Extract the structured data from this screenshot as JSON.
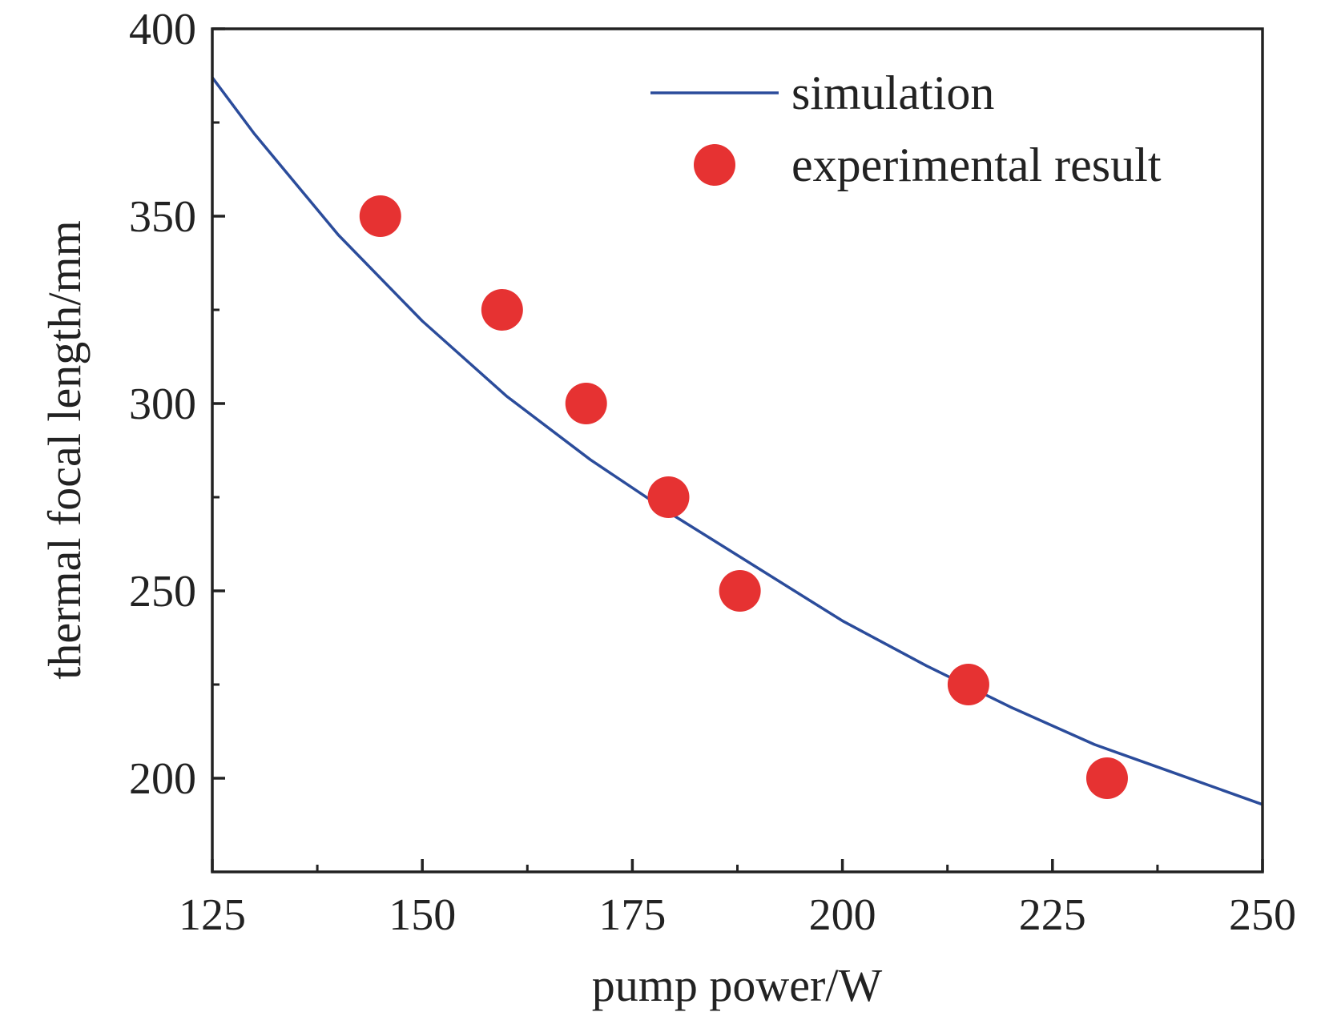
{
  "chart_data": {
    "type": "line",
    "title": "",
    "xlabel": "pump power/W",
    "ylabel": "thermal focal length/mm",
    "xlim": [
      125,
      250
    ],
    "ylim": [
      175,
      400
    ],
    "x_ticks": [
      125,
      150,
      175,
      200,
      225,
      250
    ],
    "y_ticks": [
      200,
      250,
      300,
      350,
      400
    ],
    "x_tick_labels": [
      "125",
      "150",
      "175",
      "200",
      "225",
      "250"
    ],
    "y_tick_labels": [
      "200",
      "250",
      "300",
      "350",
      "400"
    ],
    "grid": false,
    "legend_position": "top-right",
    "series": [
      {
        "name": "simulation",
        "kind": "line",
        "color": "#2b4c9b",
        "points": [
          [
            125,
            387
          ],
          [
            130,
            372
          ],
          [
            140,
            345
          ],
          [
            150,
            322
          ],
          [
            160,
            302
          ],
          [
            170,
            285
          ],
          [
            180,
            270
          ],
          [
            190,
            256
          ],
          [
            200,
            242
          ],
          [
            210,
            230
          ],
          [
            220,
            219
          ],
          [
            230,
            209
          ],
          [
            240,
            201
          ],
          [
            250,
            193
          ]
        ]
      },
      {
        "name": "experimental result",
        "kind": "scatter",
        "color": "#e63232",
        "points": [
          [
            145,
            350
          ],
          [
            159.5,
            325
          ],
          [
            169.5,
            300
          ],
          [
            179.3,
            275
          ],
          [
            187.8,
            250
          ],
          [
            215,
            225
          ],
          [
            231.5,
            200
          ]
        ]
      }
    ]
  }
}
